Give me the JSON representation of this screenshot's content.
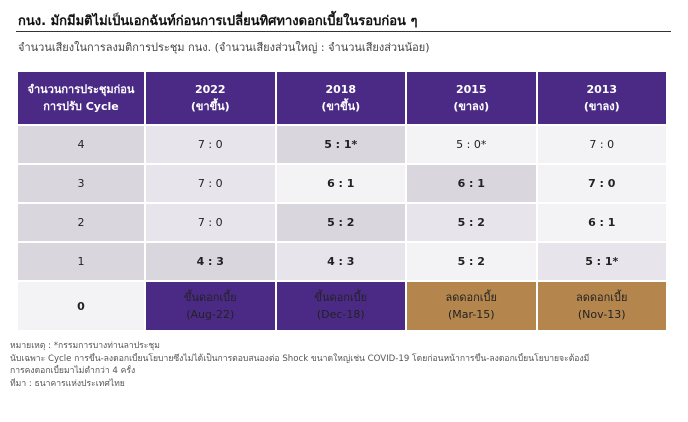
{
  "title": "กนง. มักมีมติไม่เป็นเอกฉันท์ก่อนการเปลี่ยนทิศทางดอกเบี้ยในรอบก่อน ๆ",
  "subtitle": "จำนวนเสียงในการลงมติการประชุม กนง. (จำนวนเสียงส่วนใหญ่ : จำนวนเสียงส่วนน้อย)",
  "table": {
    "corner_line1": "จำนวนการประชุมก่อน",
    "corner_line2": "การปรับ Cycle",
    "columns": [
      {
        "year": "2022",
        "note": "(ขาขึ้น)"
      },
      {
        "year": "2018",
        "note": "(ขาขึ้น)"
      },
      {
        "year": "2015",
        "note": "(ขาลง)"
      },
      {
        "year": "2013",
        "note": "(ขาลง)"
      }
    ],
    "rows": [
      {
        "label": "4",
        "cells": [
          "7 : 0",
          "5 : 1*",
          "5 : 0*",
          "7 : 0"
        ]
      },
      {
        "label": "3",
        "cells": [
          "7 : 0",
          "6 : 1",
          "6 : 1",
          "7 : 0"
        ]
      },
      {
        "label": "2",
        "cells": [
          "7 : 0",
          "5 : 2",
          "5 : 2",
          "6 : 1"
        ]
      },
      {
        "label": "1",
        "cells": [
          "4 : 3",
          "4 : 3",
          "5 : 2",
          "5 : 1*"
        ]
      }
    ],
    "last_row": {
      "label": "0",
      "cells": [
        {
          "line1": "ขึ้นดอกเบี้ย",
          "line2": "(Aug-22)"
        },
        {
          "line1": "ขึ้นดอกเบี้ย",
          "line2": "(Dec-18)"
        },
        {
          "line1": "ลดดอกเบี้ย",
          "line2": "(Mar-15)"
        },
        {
          "line1": "ลดดอกเบี้ย",
          "line2": "(Nov-13)"
        }
      ]
    }
  },
  "notes": {
    "line1": "หมายเหตุ : *กรรมการบางท่านลาประชุม",
    "line2": "นับเฉพาะ Cycle การขึ้น-ลงดอกเบี้ยนโยบายซึ่งไม่ได้เป็นการตอบสนองต่อ Shock ขนาดใหญ่เช่น COVID-19 โดยก่อนหน้าการขึ้น-ลงดอกเบี้ยนโยบายจะต้องมี",
    "line3": "การคงดอกเบี้ยมาไม่ต่ำกว่า 4 ครั้ง",
    "line4": "ที่มา : ธนาคารแห่งประเทศไทย"
  },
  "colors": {
    "header_purple": "#4b2a86",
    "hike_purple": "#4b2a86",
    "cut_brown": "#b4864d",
    "cell_dark": "#d9d6de",
    "cell_mid": "#e7e5eb",
    "cell_light": "#f3f2f5"
  }
}
